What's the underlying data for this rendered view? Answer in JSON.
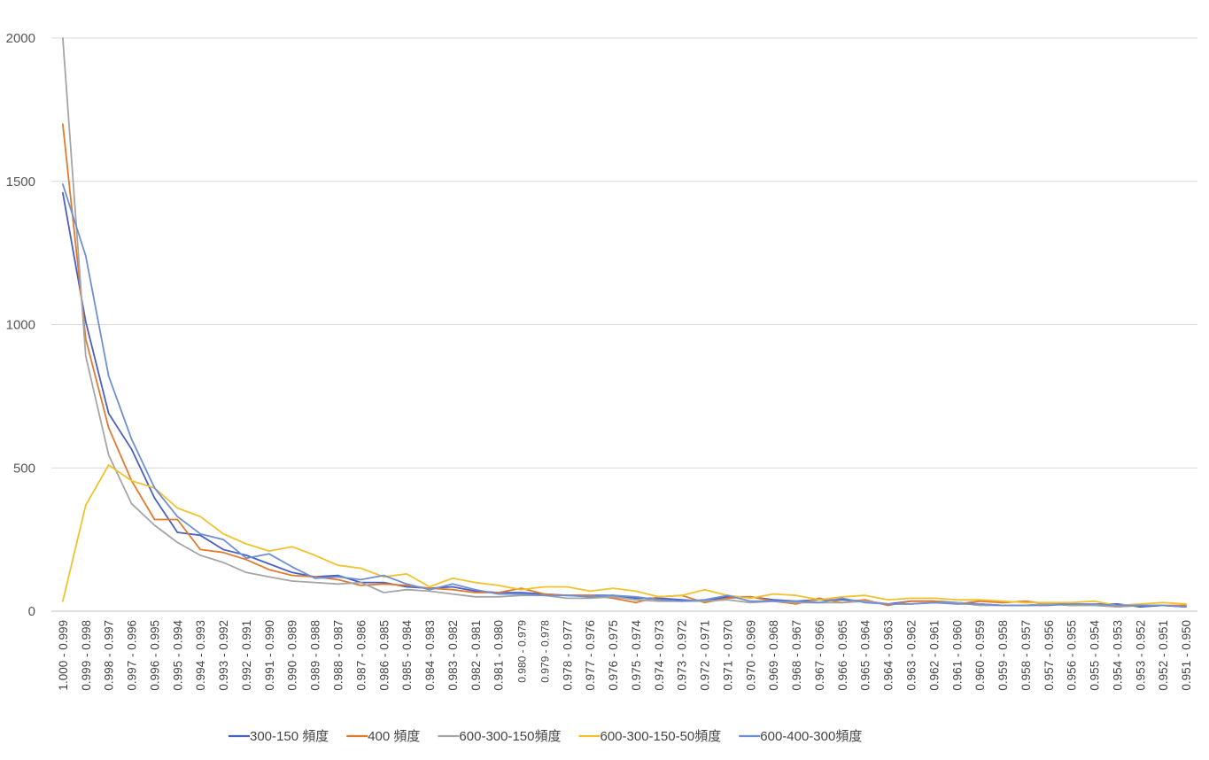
{
  "chart_data": {
    "type": "line",
    "title": "",
    "xlabel": "",
    "ylabel": "",
    "ylim": [
      0,
      2000
    ],
    "yticks": [
      "0",
      "500",
      "1000",
      "1500",
      "2000"
    ],
    "grid": "horizontal",
    "legend_position": "bottom",
    "categories": [
      "1.000 - 0.999",
      "0.999 - 0.998",
      "0.998 - 0.997",
      "0.997 - 0.996",
      "0.996 - 0.995",
      "0.995 - 0.994",
      "0.994 - 0.993",
      "0.993 - 0.992",
      "0.992 - 0.991",
      "0.991 - 0.990",
      "0.990 - 0.989",
      "0.989 - 0.988",
      "0.988 - 0.987",
      "0.987 - 0.986",
      "0.986 - 0.985",
      "0.985 - 0.984",
      "0.984 - 0.983",
      "0.983 - 0.982",
      "0.982 - 0.981",
      "0.981 - 0.980",
      "0.980 - 0.979",
      "0.979 - 0.978",
      "0.978 - 0.977",
      "0.977 - 0.976",
      "0.976 - 0.975",
      "0.975 - 0.974",
      "0.974 - 0.973",
      "0.973 - 0.972",
      "0.972 - 0.971",
      "0.971 - 0.970",
      "0.970 - 0.969",
      "0.969 - 0.968",
      "0.968 - 0.967",
      "0.967 - 0.966",
      "0.966 - 0.965",
      "0.965 - 0.964",
      "0.964 - 0.963",
      "0.963 - 0.962",
      "0.962 - 0.961",
      "0.961 - 0.960",
      "0.960 - 0.959",
      "0.959 - 0.958",
      "0.958 - 0.957",
      "0.957 - 0.956",
      "0.956 - 0.955",
      "0.955 - 0.954",
      "0.954 - 0.953",
      "0.953 - 0.952",
      "0.952 - 0.951",
      "0.951 - 0.950"
    ],
    "small_label_indices": [
      20,
      21
    ],
    "series": [
      {
        "name": "300-150  頻度",
        "color": "#4a5fc1",
        "values": [
          1460,
          1010,
          690,
          565,
          395,
          275,
          265,
          215,
          195,
          165,
          135,
          120,
          125,
          100,
          100,
          85,
          80,
          85,
          70,
          65,
          65,
          60,
          55,
          55,
          55,
          45,
          45,
          40,
          35,
          50,
          50,
          40,
          35,
          40,
          40,
          35,
          25,
          35,
          35,
          30,
          25,
          20,
          20,
          25,
          25,
          25,
          25,
          15,
          20,
          15
        ]
      },
      {
        "name": "400 頻度",
        "color": "#e07b2e",
        "values": [
          1700,
          950,
          640,
          455,
          320,
          320,
          215,
          205,
          180,
          145,
          125,
          120,
          110,
          90,
          95,
          90,
          80,
          75,
          65,
          65,
          80,
          60,
          55,
          55,
          45,
          30,
          50,
          55,
          30,
          45,
          50,
          35,
          25,
          45,
          30,
          40,
          20,
          35,
          35,
          25,
          35,
          30,
          35,
          25,
          20,
          25,
          15,
          20,
          20,
          20
        ]
      },
      {
        "name": "600-300-150頻度",
        "color": "#a5a5a5",
        "values": [
          2000,
          890,
          545,
          375,
          300,
          240,
          195,
          170,
          135,
          120,
          105,
          100,
          95,
          100,
          65,
          75,
          70,
          60,
          50,
          50,
          55,
          55,
          45,
          45,
          50,
          40,
          35,
          35,
          35,
          40,
          30,
          35,
          30,
          30,
          30,
          35,
          25,
          25,
          30,
          30,
          20,
          20,
          20,
          25,
          20,
          20,
          15,
          20,
          20,
          15
        ]
      },
      {
        "name": "600-300-150-50頻度",
        "color": "#f2c12e",
        "values": [
          35,
          370,
          510,
          455,
          430,
          360,
          330,
          270,
          235,
          210,
          225,
          195,
          160,
          150,
          120,
          130,
          85,
          115,
          100,
          90,
          75,
          85,
          85,
          70,
          80,
          70,
          50,
          55,
          75,
          55,
          45,
          60,
          55,
          40,
          50,
          55,
          40,
          45,
          45,
          40,
          40,
          35,
          30,
          30,
          30,
          35,
          20,
          25,
          30,
          25
        ]
      },
      {
        "name": "600-400-300頻度",
        "color": "#6f8fd4",
        "values": [
          1490,
          1240,
          820,
          600,
          430,
          330,
          270,
          250,
          185,
          200,
          155,
          115,
          120,
          110,
          125,
          95,
          75,
          95,
          75,
          60,
          60,
          55,
          55,
          50,
          55,
          50,
          40,
          35,
          40,
          55,
          35,
          35,
          35,
          30,
          45,
          30,
          25,
          25,
          30,
          25,
          25,
          20,
          20,
          20,
          25,
          25,
          20,
          20,
          20,
          15
        ]
      }
    ]
  }
}
